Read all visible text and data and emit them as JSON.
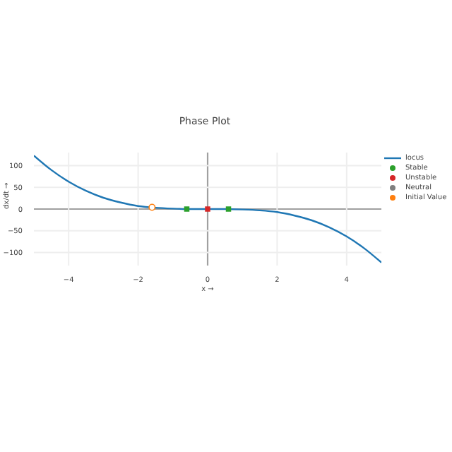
{
  "chart_data": {
    "type": "line",
    "title": "Phase Plot",
    "xlabel": "x →",
    "ylabel": "dx/dt →",
    "xlim": [
      -5,
      5
    ],
    "ylim": [
      -130,
      130
    ],
    "xticks": [
      -4,
      -2,
      0,
      2,
      4
    ],
    "yticks": [
      -100,
      -50,
      0,
      50,
      100
    ],
    "grid": true,
    "legend": "top right",
    "series": [
      {
        "name": "locus",
        "type": "line",
        "color": "#1f77b4",
        "marker": "none",
        "x": [
          -5,
          -4.5,
          -4,
          -3.5,
          -3,
          -2.5,
          -2,
          -1.5,
          -1,
          -0.5,
          0,
          0.5,
          1,
          1.5,
          2,
          2.5,
          3,
          3.5,
          4,
          4.5,
          5
        ],
        "values": [
          123,
          90,
          63,
          42,
          26,
          15,
          7,
          3,
          1,
          0,
          0,
          0,
          -1,
          -3,
          -7,
          -15,
          -26,
          -42,
          -63,
          -90,
          -123
        ]
      },
      {
        "name": "Stable",
        "type": "scatter",
        "color": "#2ca02c",
        "marker": "square",
        "x": [
          -0.6,
          0.6
        ],
        "values": [
          0,
          0
        ]
      },
      {
        "name": "Unstable",
        "type": "scatter",
        "color": "#d62728",
        "marker": "square",
        "x": [
          0
        ],
        "values": [
          0
        ]
      },
      {
        "name": "Neutral",
        "type": "scatter",
        "color": "#7f7f7f",
        "marker": "square"
      },
      {
        "name": "Initial Value",
        "type": "scatter",
        "color": "#ff7f0e",
        "marker": "circle",
        "x": [
          -1.6
        ],
        "values": [
          4
        ]
      }
    ]
  }
}
